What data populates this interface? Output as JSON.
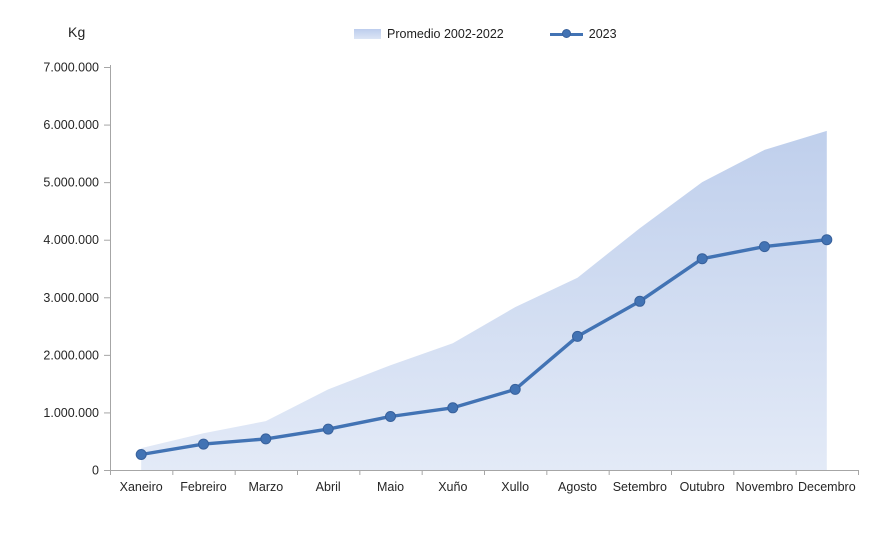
{
  "chart_data": {
    "type": "combo",
    "title": "",
    "unit_label": "Kg",
    "categories": [
      "Xaneiro",
      "Febreiro",
      "Marzo",
      "Abril",
      "Maio",
      "Xuño",
      "Xullo",
      "Agosto",
      "Setembro",
      "Outubro",
      "Novembro",
      "Decembro"
    ],
    "series": [
      {
        "name": "Promedio 2002-2022",
        "type": "area",
        "values": [
          380000,
          640000,
          850000,
          1400000,
          1820000,
          2200000,
          2830000,
          3340000,
          4200000,
          5000000,
          5560000,
          5890000
        ],
        "fill_top": "#bfcfec",
        "fill_bottom": "#e3eaf7"
      },
      {
        "name": "2023",
        "type": "line",
        "values": [
          270000,
          450000,
          540000,
          710000,
          930000,
          1080000,
          1400000,
          2320000,
          2930000,
          3670000,
          3880000,
          4000000
        ],
        "color": "#4273b4",
        "marker_stroke": "#38619c"
      }
    ],
    "ylim": [
      0,
      7000000
    ],
    "ytick_interval": 1000000,
    "ytick_labels": [
      "0",
      "1.000.000",
      "2.000.000",
      "3.000.000",
      "4.000.000",
      "5.000.000",
      "6.000.000",
      "7.000.000"
    ],
    "grid": false,
    "legend_position": "top-center",
    "axis_color": "#a6a6a6",
    "text_color": "#262626"
  }
}
